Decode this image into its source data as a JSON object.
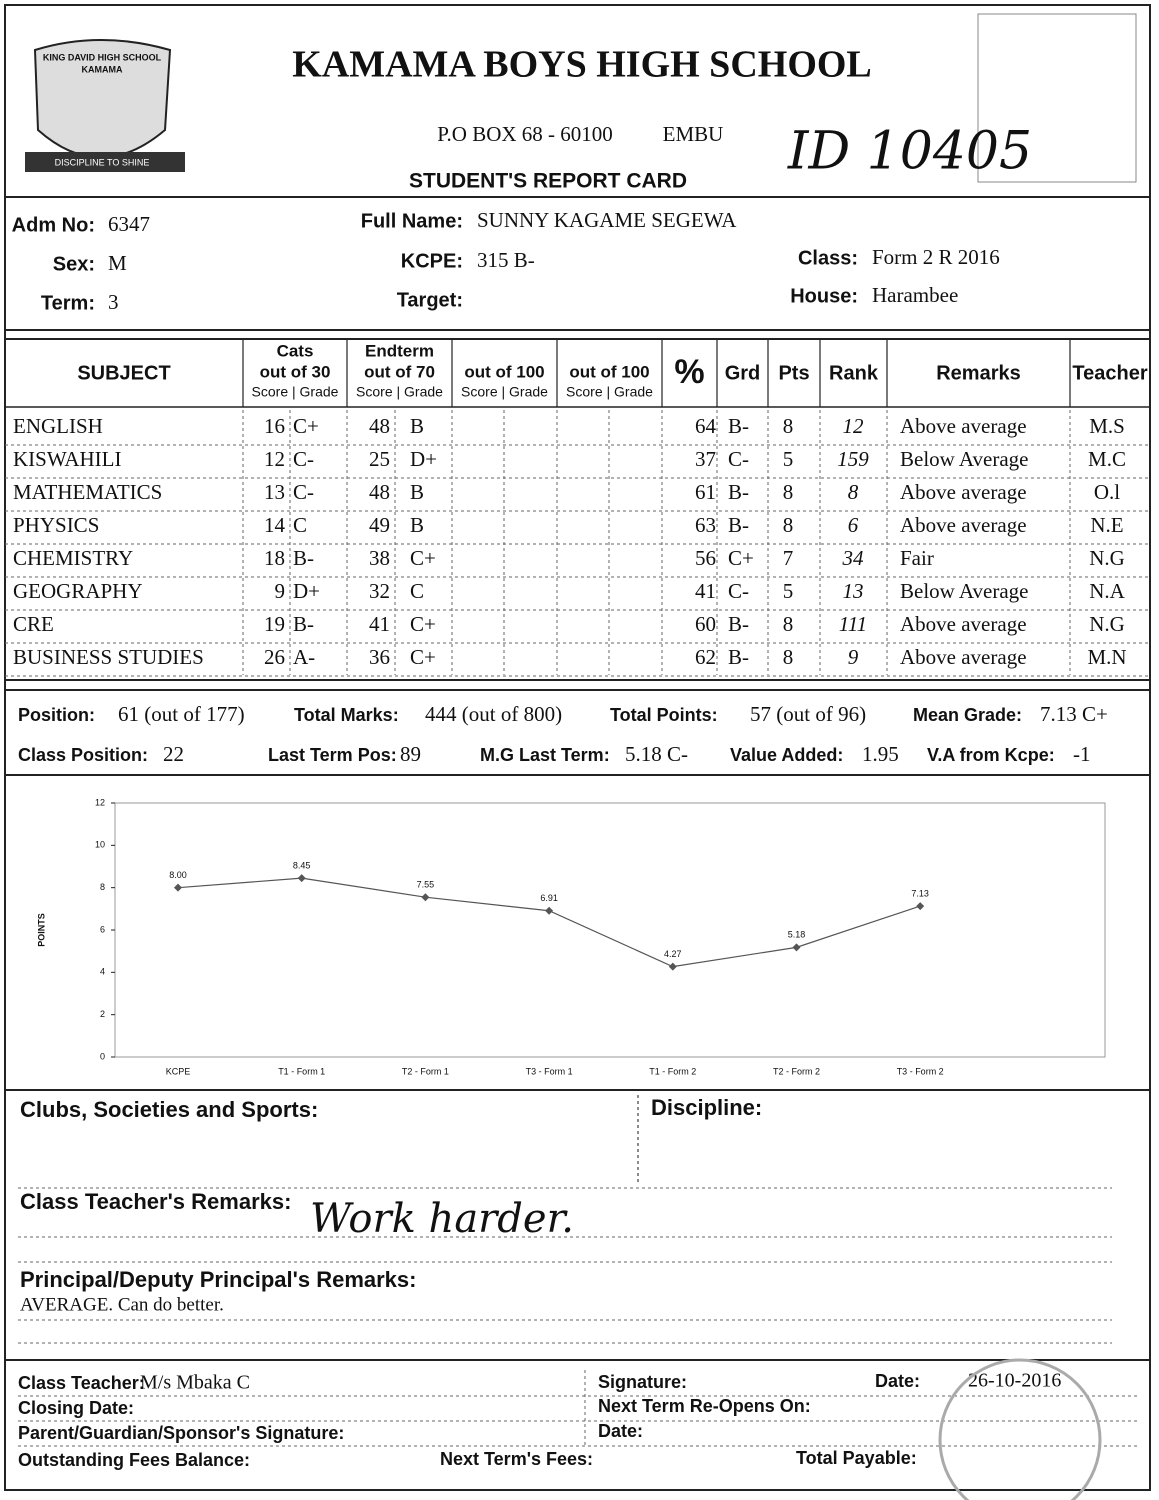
{
  "header": {
    "logo_text": [
      "KING DAVID HIGH SCHOOL",
      "KAMAMA",
      "DISCIPLINE TO SHINE"
    ],
    "school_name": "KAMAMA BOYS HIGH SCHOOL",
    "address": "P.O BOX 68 - 60100",
    "town": "EMBU",
    "handwritten_id": "ID 10405",
    "title": "STUDENT'S REPORT CARD"
  },
  "student": {
    "adm_no": {
      "label": "Adm No:",
      "value": "6347"
    },
    "full_name": {
      "label": "Full Name:",
      "value": "SUNNY KAGAME SEGEWA"
    },
    "sex": {
      "label": "Sex:",
      "value": "M"
    },
    "kcpe": {
      "label": "KCPE:",
      "value": "315 B-"
    },
    "class": {
      "label": "Class:",
      "value": "Form 2 R 2016"
    },
    "term": {
      "label": "Term:",
      "value": "3"
    },
    "target": {
      "label": "Target:"
    },
    "house": {
      "label": "House:",
      "value": "Harambee"
    }
  },
  "table": {
    "columns": [
      {
        "title": "SUBJECT"
      },
      {
        "title": "Cats",
        "sub": "out of 30",
        "scale": "Score | Grade"
      },
      {
        "title": "Endterm",
        "sub": "out of 70",
        "scale": "Score | Grade"
      },
      {
        "sub": "out of 100",
        "scale": "Score | Grade"
      },
      {
        "sub": "out of 100",
        "scale": "Score | Grade"
      },
      {
        "title": "%"
      },
      {
        "title": "Grd"
      },
      {
        "title": "Pts"
      },
      {
        "title": "Rank"
      },
      {
        "title": "Remarks"
      },
      {
        "title": "Teacher"
      }
    ],
    "rows": [
      [
        "ENGLISH",
        16,
        "C+",
        48,
        "B",
        64,
        "B-",
        8,
        12,
        "Above average",
        "M.S"
      ],
      [
        "KISWAHILI",
        12,
        "C-",
        25,
        "D+",
        37,
        "C-",
        5,
        159,
        "Below Average",
        "M.C"
      ],
      [
        "MATHEMATICS",
        13,
        "C-",
        48,
        "B",
        61,
        "B-",
        8,
        8,
        "Above average",
        "O.l"
      ],
      [
        "PHYSICS",
        14,
        "C",
        49,
        "B",
        63,
        "B-",
        8,
        6,
        "Above average",
        "N.E"
      ],
      [
        "CHEMISTRY",
        18,
        "B-",
        38,
        "C+",
        56,
        "C+",
        7,
        34,
        "Fair",
        "N.G"
      ],
      [
        "GEOGRAPHY",
        9,
        "D+",
        32,
        "C",
        41,
        "C-",
        5,
        13,
        "Below Average",
        "N.A"
      ],
      [
        "CRE",
        19,
        "B-",
        41,
        "C+",
        60,
        "B-",
        8,
        111,
        "Above average",
        "N.G"
      ],
      [
        "BUSINESS STUDIES",
        26,
        "A-",
        36,
        "C+",
        62,
        "B-",
        8,
        9,
        "Above average",
        "M.N"
      ]
    ]
  },
  "summary": [
    {
      "label": "Position:",
      "value": "61 (out of 177)"
    },
    {
      "label": "Total Marks:",
      "value": "444 (out of 800)"
    },
    {
      "label": "Total Points:",
      "value": "57 (out of 96)"
    },
    {
      "label": "Mean Grade:",
      "value": "7.13 C+"
    },
    {
      "label": "Class Position:",
      "value": "22"
    },
    {
      "label": "Last Term Pos:",
      "value": "89"
    },
    {
      "label": "M.G Last Term:",
      "value": "5.18 C-"
    },
    {
      "label": "Value Added:",
      "value": "1.95"
    },
    {
      "label": "V.A from Kcpe:",
      "value": "-1"
    }
  ],
  "chart_data": {
    "type": "line",
    "y_label": "POINTS",
    "categories": [
      "KCPE",
      "T1 - Form 1",
      "T2 - Form 1",
      "T3 - Form 1",
      "T1 - Form 2",
      "T2 - Form 2",
      "T3 - Form 2"
    ],
    "values": [
      8,
      8.45,
      7.55,
      6.91,
      4.27,
      5.18,
      7.13
    ],
    "value_labels": [
      "8.00",
      "8.45",
      "7.55",
      "6.91",
      "4.27",
      "5.18",
      "7.13"
    ],
    "color": "#555555",
    "ylim": [
      0,
      12
    ],
    "yticks": [
      0,
      2,
      4,
      6,
      8,
      10,
      12
    ]
  },
  "comments": {
    "clubs": {
      "label": "Clubs, Societies and Sports:"
    },
    "discipline": {
      "label": "Discipline:"
    },
    "class_teacher": {
      "label": "Class Teacher's Remarks:",
      "value": "Work harder."
    },
    "principal": {
      "label": "Principal/Deputy Principal's Remarks:",
      "value": "AVERAGE.  Can do better."
    }
  },
  "footer": {
    "class_teacher": {
      "label": "Class Teacher:",
      "value": "M/s Mbaka C"
    },
    "signature": {
      "label": "Signature:"
    },
    "date": {
      "label": "Date:",
      "value": "26-10-2016"
    },
    "closing_date": {
      "label": "Closing Date:"
    },
    "reopens": {
      "label": "Next Term Re-Opens On:"
    },
    "parent_signature": {
      "label": "Parent/Guardian/Sponsor's Signature:"
    },
    "parent_date": {
      "label": "Date:"
    },
    "fees_balance": {
      "label": "Outstanding Fees Balance:"
    },
    "next_fees": {
      "label": "Next Term's Fees:"
    },
    "total_payable": {
      "label": "Total Payable:"
    }
  }
}
